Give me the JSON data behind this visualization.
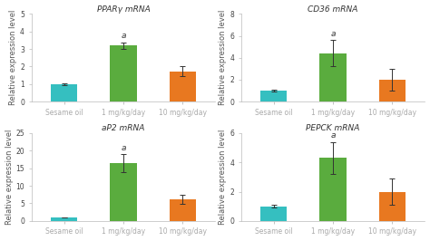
{
  "subplots": [
    {
      "title": "PPARγ mRNA",
      "ylabel": "Relative expression level",
      "categories": [
        "Sesame oil",
        "1 mg/kg/day",
        "10 mg/kg/day"
      ],
      "values": [
        1.0,
        3.2,
        1.72
      ],
      "errors": [
        0.05,
        0.18,
        0.28
      ],
      "ylim": [
        0,
        5
      ],
      "yticks": [
        0,
        1,
        2,
        3,
        4,
        5
      ],
      "asterisk_bar": 1,
      "colors": [
        "#35bfc0",
        "#5aac3e",
        "#e87820"
      ]
    },
    {
      "title": "CD36 mRNA",
      "ylabel": "Relative expression level",
      "categories": [
        "Sesame oil",
        "1 mg/kg/day",
        "10 mg/kg/day"
      ],
      "values": [
        1.0,
        4.4,
        2.0
      ],
      "errors": [
        0.08,
        1.2,
        1.0
      ],
      "ylim": [
        0,
        8
      ],
      "yticks": [
        0,
        2,
        4,
        6,
        8
      ],
      "asterisk_bar": 1,
      "colors": [
        "#35bfc0",
        "#5aac3e",
        "#e87820"
      ]
    },
    {
      "title": "aP2 mRNA",
      "ylabel": "Relative expression level",
      "categories": [
        "Sesame oil",
        "1 mg/kg/day",
        "10 mg/kg/day"
      ],
      "values": [
        1.0,
        16.5,
        6.2
      ],
      "errors": [
        0.1,
        2.5,
        1.3
      ],
      "ylim": [
        0,
        25
      ],
      "yticks": [
        0,
        5,
        10,
        15,
        20,
        25
      ],
      "asterisk_bar": 1,
      "colors": [
        "#35bfc0",
        "#5aac3e",
        "#e87820"
      ]
    },
    {
      "title": "PEPCK mRNA",
      "ylabel": "Relative expression level",
      "categories": [
        "Sesame oil",
        "1 mg/kg/day",
        "10 mg/kg/day"
      ],
      "values": [
        1.0,
        4.3,
        2.0
      ],
      "errors": [
        0.08,
        1.1,
        0.9
      ],
      "ylim": [
        0,
        6
      ],
      "yticks": [
        0,
        2,
        4,
        6
      ],
      "asterisk_bar": 1,
      "colors": [
        "#35bfc0",
        "#5aac3e",
        "#e87820"
      ]
    }
  ],
  "background_color": "#ffffff",
  "bar_width": 0.45,
  "fontsize_title": 6.5,
  "fontsize_tick": 5.5,
  "fontsize_ylabel": 6.0,
  "fontsize_asterisk": 6.5
}
